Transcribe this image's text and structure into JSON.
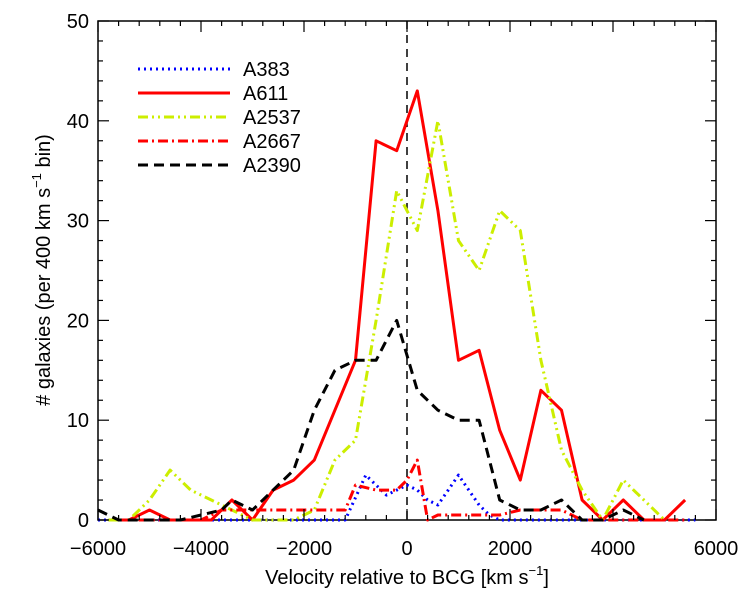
{
  "chart_data": {
    "type": "line",
    "title": "",
    "xlabel": "Velocity relative to BCG [km s",
    "xlabel_sup": "−1",
    "xlabel_end": "]",
    "ylabel": "# galaxies (per 400 km s",
    "ylabel_sup": "−1",
    "ylabel_end": " bin)",
    "xlim": [
      -6000,
      6000
    ],
    "ylim": [
      0,
      50
    ],
    "xticks": [
      -6000,
      -4000,
      -2000,
      0,
      2000,
      4000,
      6000
    ],
    "xtick_labels": [
      "−6000",
      "−4000",
      "−2000",
      "0",
      "2000",
      "4000",
      "6000"
    ],
    "yticks": [
      0,
      10,
      20,
      30,
      40,
      50
    ],
    "ytick_labels": [
      "0",
      "10",
      "20",
      "30",
      "40",
      "50"
    ],
    "grid": false,
    "legend_position": "top-left",
    "reference_line_x": 0,
    "series": [
      {
        "name": "A383",
        "color": "#0000ff",
        "style": "dotted",
        "x": [
          -6000,
          -5600,
          -5200,
          -4800,
          -4400,
          -4000,
          -3600,
          -3200,
          -2800,
          -2400,
          -2000,
          -1600,
          -1200,
          -800,
          -600,
          -400,
          -200,
          0,
          200,
          400,
          600,
          800,
          1000,
          1200,
          1400,
          1600,
          1800,
          2000,
          2400,
          2800,
          3200,
          3600,
          4000,
          4400,
          4800,
          5200,
          5600
        ],
        "y": [
          0,
          0,
          0,
          0,
          0,
          0,
          0,
          0,
          0,
          0,
          0,
          0,
          0,
          4.5,
          3.5,
          2.5,
          3,
          3.5,
          3,
          2,
          1.5,
          3,
          4.5,
          3,
          1.5,
          0.5,
          0,
          0,
          0,
          0,
          0,
          0,
          0,
          0,
          0,
          0,
          0
        ]
      },
      {
        "name": "A611",
        "color": "#ff0000",
        "style": "solid",
        "x": [
          -5400,
          -5000,
          -4600,
          -4200,
          -3800,
          -3400,
          -3000,
          -2600,
          -2200,
          -1800,
          -1400,
          -1000,
          -600,
          -200,
          200,
          600,
          1000,
          1400,
          1800,
          2200,
          2600,
          3000,
          3400,
          3800,
          4200,
          4600,
          5000,
          5400
        ],
        "y": [
          0,
          1,
          0,
          0,
          0,
          2,
          0,
          3,
          4,
          6,
          11,
          16,
          38,
          37,
          43,
          31,
          16,
          17,
          9,
          4,
          13,
          11,
          2,
          0,
          2,
          0,
          0,
          2
        ]
      },
      {
        "name": "A2537",
        "color": "#ccee00",
        "style": "dash-dot-dot",
        "x": [
          -5800,
          -5400,
          -5000,
          -4600,
          -4200,
          -3800,
          -3400,
          -3000,
          -2600,
          -2200,
          -1800,
          -1400,
          -1000,
          -600,
          -200,
          200,
          600,
          1000,
          1400,
          1800,
          2200,
          2600,
          3000,
          3400,
          3800,
          4200,
          4600,
          5000
        ],
        "y": [
          0,
          0,
          2,
          5,
          3,
          2,
          1,
          0,
          0,
          0,
          1,
          6,
          8,
          20,
          33,
          29,
          40,
          28,
          25,
          31,
          29,
          16,
          7,
          3,
          0,
          4,
          2,
          0
        ]
      },
      {
        "name": "A2667",
        "color": "#ff0000",
        "style": "dash-dot",
        "x": [
          -5600,
          -5200,
          -4800,
          -4400,
          -4000,
          -3600,
          -3200,
          -2800,
          -2400,
          -2000,
          -1600,
          -1200,
          -1000,
          -600,
          -400,
          -200,
          0,
          200,
          400,
          600,
          1000,
          1400,
          1800,
          2200,
          2600,
          3000,
          3400,
          3800,
          4200,
          4600,
          5000,
          5400
        ],
        "y": [
          0,
          0,
          0,
          0,
          0,
          1,
          1,
          1,
          1,
          1,
          1,
          1,
          3.5,
          3,
          3,
          3,
          4,
          6,
          0,
          0.5,
          0.5,
          0.5,
          0.5,
          1,
          1,
          1,
          0,
          0,
          0,
          0,
          0,
          0
        ]
      },
      {
        "name": "A2390",
        "color": "#000000",
        "style": "dashed",
        "x": [
          -6000,
          -5600,
          -5200,
          -4800,
          -4400,
          -4000,
          -3600,
          -3400,
          -3000,
          -2600,
          -2200,
          -1800,
          -1400,
          -1000,
          -600,
          -200,
          200,
          600,
          1000,
          1400,
          1800,
          2200,
          2600,
          3000,
          3400,
          3800,
          4200,
          4600
        ],
        "y": [
          1,
          0,
          0,
          0,
          0,
          0.5,
          1,
          2,
          1,
          3,
          5,
          11,
          15,
          16,
          16,
          20,
          13,
          11,
          10,
          10,
          2,
          1,
          1,
          2,
          0,
          0,
          1,
          0
        ]
      }
    ]
  }
}
